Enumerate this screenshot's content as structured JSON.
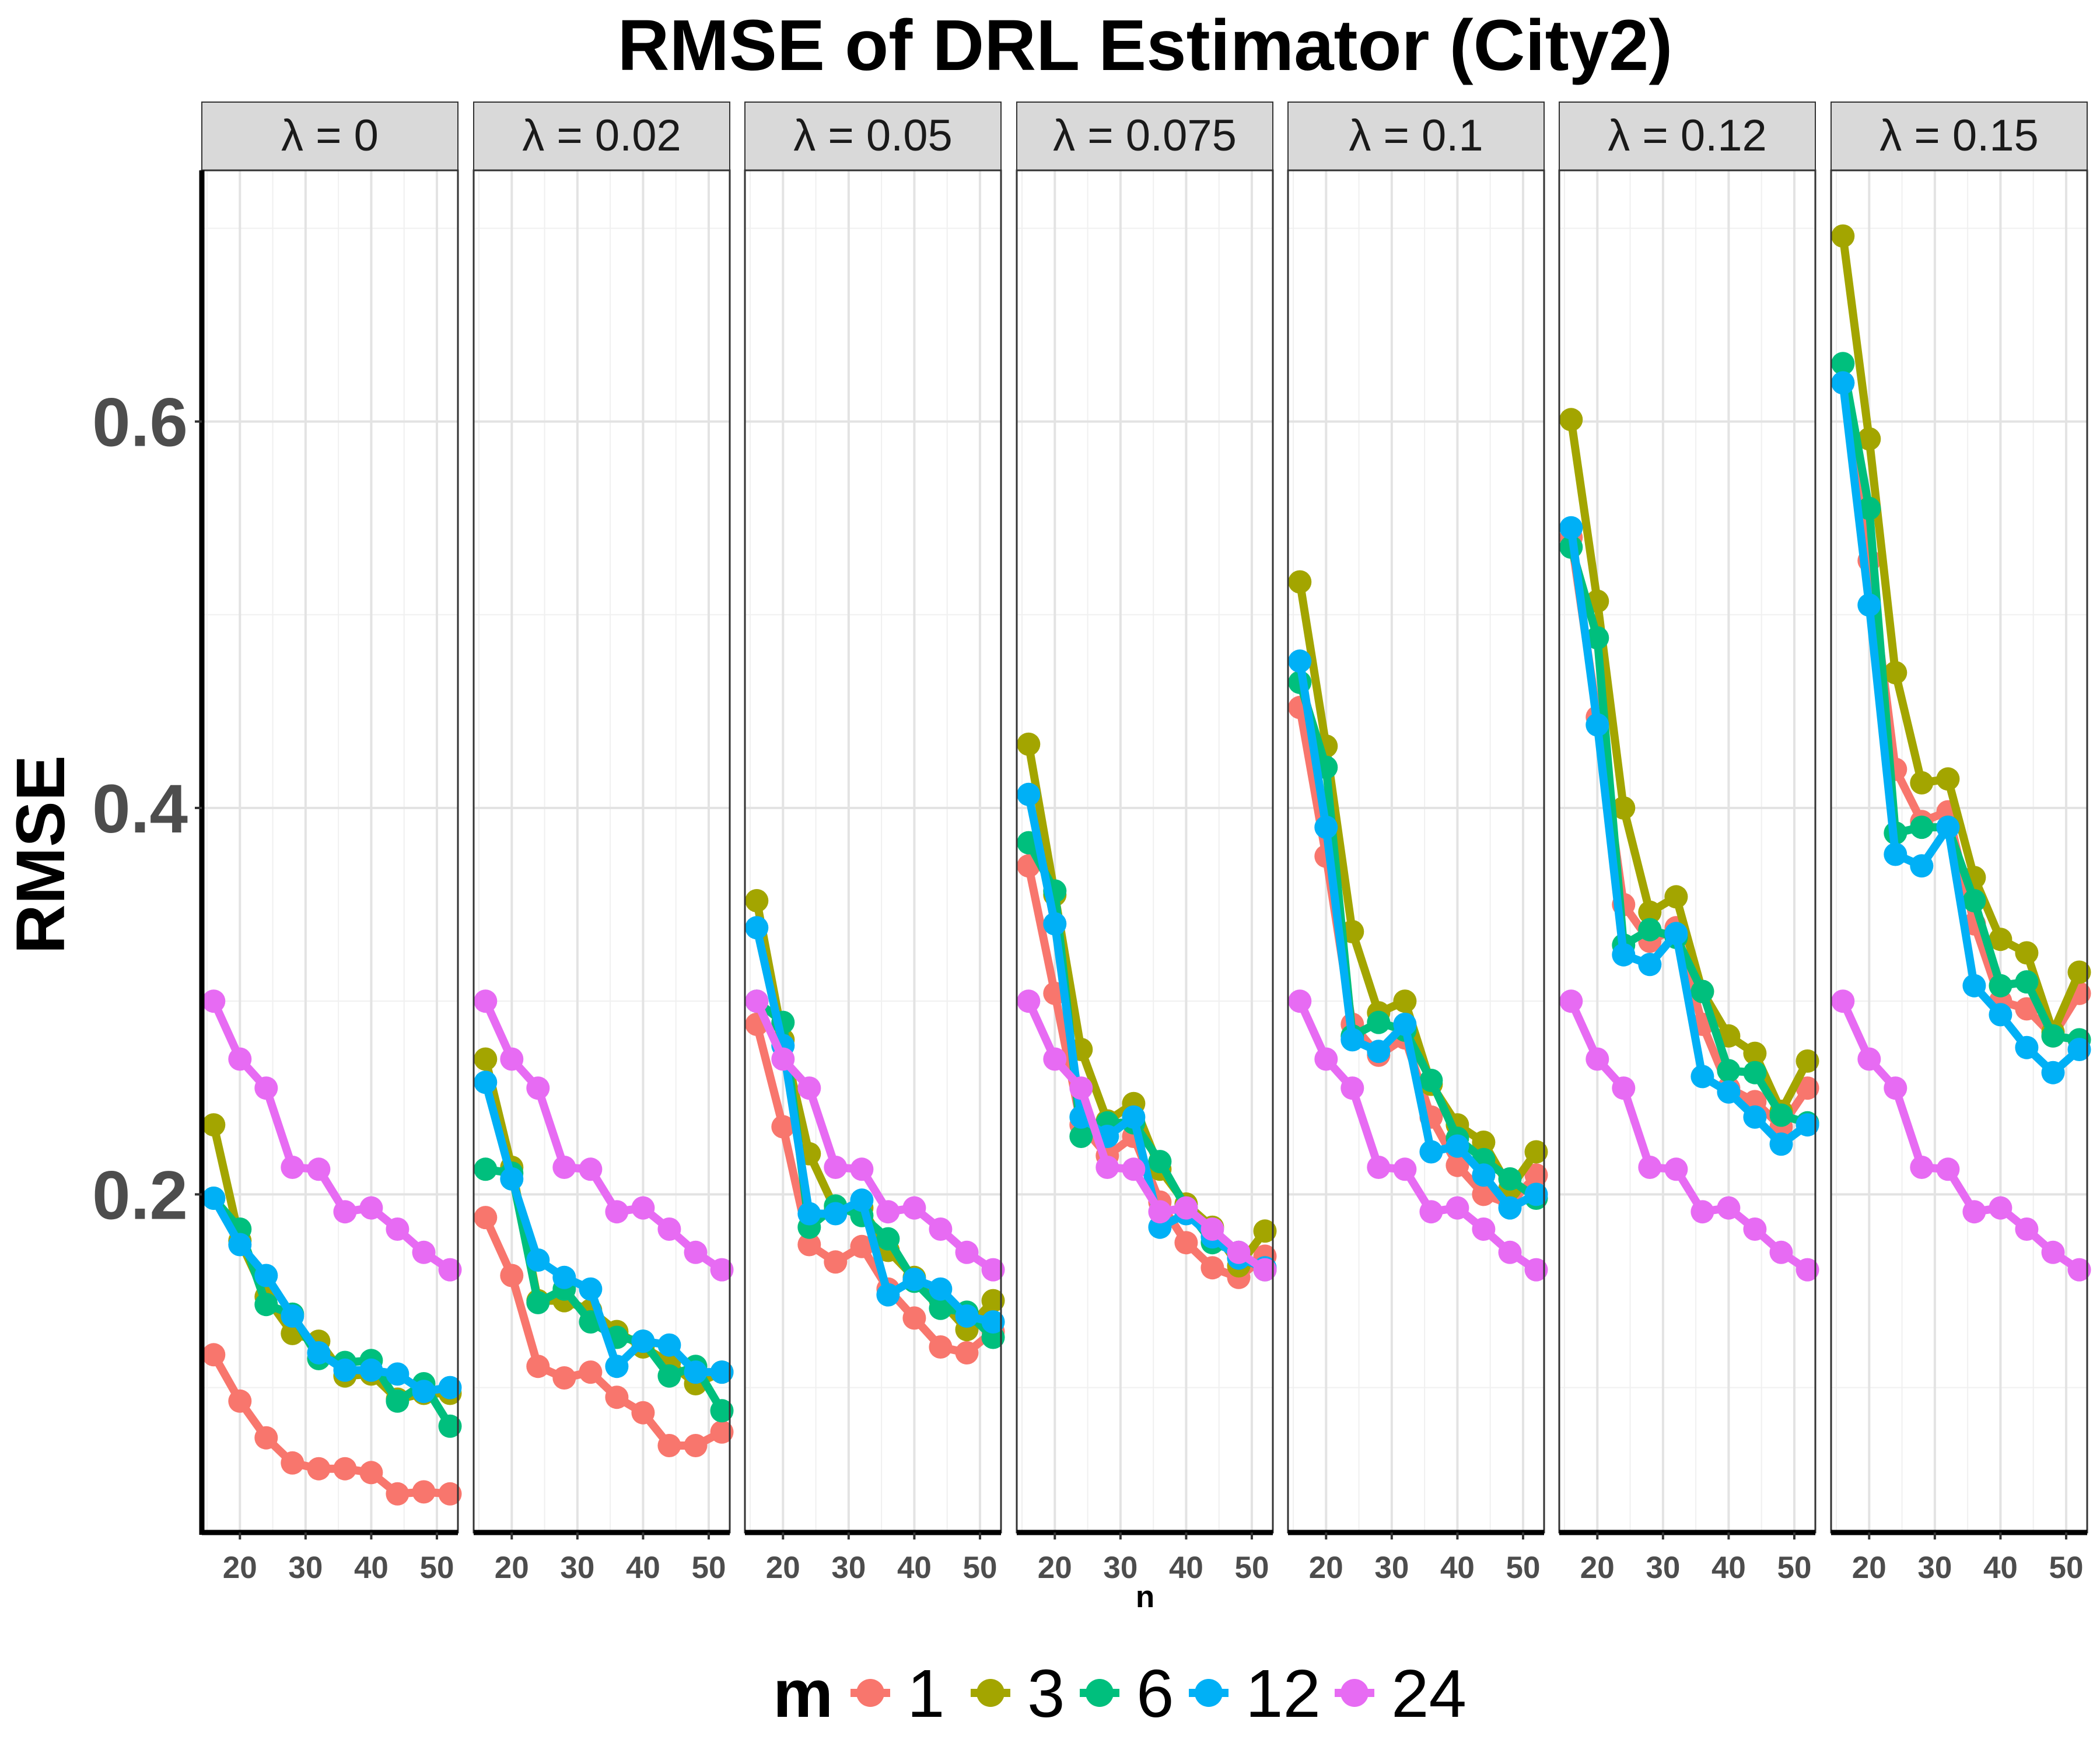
{
  "chart_data": {
    "type": "line",
    "title": "RMSE of DRL Estimator (City2)",
    "xlabel": "n",
    "ylabel": "RMSE",
    "x": [
      16,
      20,
      24,
      28,
      32,
      36,
      40,
      44,
      48,
      52
    ],
    "xlim": [
      14.2,
      53.2
    ],
    "ylim": [
      0.025,
      0.73
    ],
    "x_ticks": [
      20,
      30,
      40,
      50
    ],
    "y_ticks": [
      0.2,
      0.4,
      0.6
    ],
    "y_tick_labels": [
      "0.2",
      "0.4",
      "0.6"
    ],
    "legend_title": "m",
    "legend_position": "bottom",
    "series_colors": {
      "1": "#F8766D",
      "3": "#A3A500",
      "6": "#00BF7D",
      "12": "#00B0F6",
      "24": "#E76BF3"
    },
    "grid": true,
    "panels": [
      {
        "label": "λ = 0",
        "series": [
          {
            "name": "1",
            "values": [
              0.117,
              0.093,
              0.074,
              0.061,
              0.058,
              0.058,
              0.056,
              0.045,
              0.046,
              0.045
            ]
          },
          {
            "name": "3",
            "values": [
              0.236,
              0.176,
              0.147,
              0.128,
              0.124,
              0.106,
              0.107,
              0.094,
              0.097,
              0.097
            ]
          },
          {
            "name": "6",
            "values": [
              0.198,
              0.182,
              0.143,
              0.138,
              0.115,
              0.113,
              0.114,
              0.093,
              0.102,
              0.08
            ]
          },
          {
            "name": "12",
            "values": [
              0.198,
              0.174,
              0.158,
              0.137,
              0.118,
              0.109,
              0.109,
              0.107,
              0.098,
              0.1
            ]
          },
          {
            "name": "24",
            "values": [
              0.3,
              0.27,
              0.255,
              0.214,
              0.213,
              0.191,
              0.193,
              0.182,
              0.17,
              0.161
            ]
          }
        ]
      },
      {
        "label": "λ = 0.02",
        "series": [
          {
            "name": "1",
            "values": [
              0.188,
              0.158,
              0.111,
              0.105,
              0.108,
              0.095,
              0.087,
              0.07,
              0.07,
              0.077
            ]
          },
          {
            "name": "3",
            "values": [
              0.27,
              0.214,
              0.145,
              0.145,
              0.14,
              0.129,
              0.121,
              0.113,
              0.102,
              0.108
            ]
          },
          {
            "name": "6",
            "values": [
              0.213,
              0.211,
              0.144,
              0.151,
              0.134,
              0.126,
              0.124,
              0.106,
              0.111,
              0.088
            ]
          },
          {
            "name": "12",
            "values": [
              0.258,
              0.208,
              0.166,
              0.157,
              0.151,
              0.111,
              0.124,
              0.122,
              0.108,
              0.108
            ]
          },
          {
            "name": "24",
            "values": [
              0.3,
              0.27,
              0.255,
              0.214,
              0.213,
              0.191,
              0.193,
              0.182,
              0.17,
              0.161
            ]
          }
        ]
      },
      {
        "label": "λ = 0.05",
        "series": [
          {
            "name": "1",
            "values": [
              0.288,
              0.235,
              0.174,
              0.165,
              0.173,
              0.151,
              0.136,
              0.121,
              0.118,
              0.129
            ]
          },
          {
            "name": "3",
            "values": [
              0.352,
              0.28,
              0.221,
              0.192,
              0.193,
              0.171,
              0.157,
              0.145,
              0.13,
              0.145
            ]
          },
          {
            "name": "6",
            "values": [
              0.3,
              0.289,
              0.183,
              0.194,
              0.189,
              0.177,
              0.155,
              0.141,
              0.139,
              0.126
            ]
          },
          {
            "name": "12",
            "values": [
              0.338,
              0.277,
              0.19,
              0.19,
              0.197,
              0.148,
              0.156,
              0.151,
              0.137,
              0.134
            ]
          },
          {
            "name": "24",
            "values": [
              0.3,
              0.27,
              0.255,
              0.214,
              0.213,
              0.191,
              0.193,
              0.182,
              0.17,
              0.161
            ]
          }
        ]
      },
      {
        "label": "λ = 0.075",
        "series": [
          {
            "name": "1",
            "values": [
              0.37,
              0.304,
              0.236,
              0.22,
              0.23,
              0.196,
              0.175,
              0.162,
              0.157,
              0.168
            ]
          },
          {
            "name": "3",
            "values": [
              0.433,
              0.355,
              0.275,
              0.238,
              0.247,
              0.213,
              0.195,
              0.183,
              0.163,
              0.181
            ]
          },
          {
            "name": "6",
            "values": [
              0.382,
              0.357,
              0.23,
              0.237,
              0.237,
              0.217,
              0.193,
              0.175,
              0.17,
              0.161
            ]
          },
          {
            "name": "12",
            "values": [
              0.407,
              0.34,
              0.24,
              0.23,
              0.24,
              0.183,
              0.19,
              0.178,
              0.167,
              0.162
            ]
          },
          {
            "name": "24",
            "values": [
              0.3,
              0.27,
              0.255,
              0.214,
              0.213,
              0.191,
              0.193,
              0.182,
              0.17,
              0.161
            ]
          }
        ]
      },
      {
        "label": "λ = 0.1",
        "series": [
          {
            "name": "1",
            "values": [
              0.452,
              0.375,
              0.288,
              0.272,
              0.281,
              0.24,
              0.215,
              0.2,
              0.195,
              0.21
            ]
          },
          {
            "name": "3",
            "values": [
              0.517,
              0.432,
              0.336,
              0.294,
              0.3,
              0.257,
              0.236,
              0.227,
              0.203,
              0.222
            ]
          },
          {
            "name": "6",
            "values": [
              0.465,
              0.421,
              0.282,
              0.289,
              0.285,
              0.259,
              0.229,
              0.218,
              0.208,
              0.198
            ]
          },
          {
            "name": "12",
            "values": [
              0.476,
              0.39,
              0.28,
              0.274,
              0.288,
              0.222,
              0.225,
              0.21,
              0.193,
              0.2
            ]
          },
          {
            "name": "24",
            "values": [
              0.3,
              0.27,
              0.255,
              0.214,
              0.213,
              0.191,
              0.193,
              0.182,
              0.17,
              0.161
            ]
          }
        ]
      },
      {
        "label": "λ = 0.12",
        "series": [
          {
            "name": "1",
            "values": [
              0.54,
              0.447,
              0.35,
              0.331,
              0.338,
              0.288,
              0.255,
              0.248,
              0.235,
              0.255
            ]
          },
          {
            "name": "3",
            "values": [
              0.601,
              0.507,
              0.4,
              0.346,
              0.354,
              0.305,
              0.282,
              0.273,
              0.243,
              0.269
            ]
          },
          {
            "name": "6",
            "values": [
              0.535,
              0.488,
              0.329,
              0.337,
              0.333,
              0.305,
              0.264,
              0.263,
              0.241,
              0.237
            ]
          },
          {
            "name": "12",
            "values": [
              0.545,
              0.443,
              0.324,
              0.319,
              0.335,
              0.261,
              0.253,
              0.24,
              0.226,
              0.236
            ]
          },
          {
            "name": "24",
            "values": [
              0.3,
              0.27,
              0.255,
              0.214,
              0.213,
              0.191,
              0.193,
              0.182,
              0.17,
              0.161
            ]
          }
        ]
      },
      {
        "label": "λ = 0.15",
        "series": [
          {
            "name": "1",
            "values": [
              0.62,
              0.528,
              0.42,
              0.393,
              0.398,
              0.34,
              0.3,
              0.296,
              0.282,
              0.304
            ]
          },
          {
            "name": "3",
            "values": [
              0.696,
              0.591,
              0.47,
              0.413,
              0.415,
              0.364,
              0.332,
              0.325,
              0.284,
              0.315
            ]
          },
          {
            "name": "6",
            "values": [
              0.63,
              0.555,
              0.387,
              0.39,
              0.39,
              0.352,
              0.308,
              0.31,
              0.282,
              0.28
            ]
          },
          {
            "name": "12",
            "values": [
              0.62,
              0.505,
              0.376,
              0.37,
              0.39,
              0.308,
              0.293,
              0.276,
              0.263,
              0.275
            ]
          },
          {
            "name": "24",
            "values": [
              0.3,
              0.27,
              0.255,
              0.214,
              0.213,
              0.191,
              0.193,
              0.182,
              0.17,
              0.161
            ]
          }
        ]
      }
    ]
  }
}
